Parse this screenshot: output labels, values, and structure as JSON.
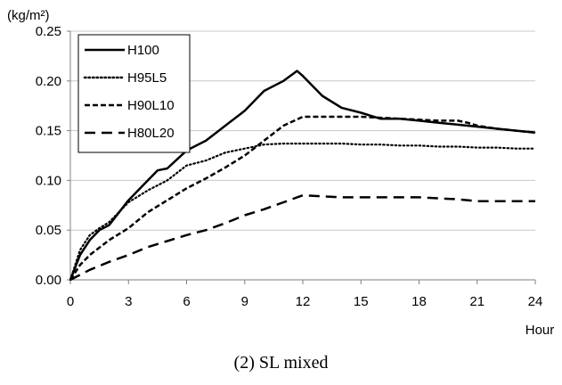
{
  "caption": "(2) SL mixed",
  "chart_data": {
    "type": "line",
    "title": "",
    "ylabel": "(kg/m²)",
    "xlabel": "Hour",
    "xlim": [
      0,
      24
    ],
    "ylim": [
      0,
      0.25
    ],
    "xticks": [
      0,
      3,
      6,
      9,
      12,
      15,
      18,
      21,
      24
    ],
    "yticks": [
      0.0,
      0.05,
      0.1,
      0.15,
      0.2,
      0.25
    ],
    "ytick_labels": [
      "0.00",
      "0.05",
      "0.10",
      "0.15",
      "0.20",
      "0.25"
    ],
    "grid": "horizontal",
    "legend_position": "top-left",
    "series": [
      {
        "name": "H100",
        "style": "solid",
        "x": [
          0,
          0.5,
          1,
          1.5,
          2,
          3,
          4,
          4.5,
          5,
          6,
          7,
          8,
          9,
          10,
          11,
          11.7,
          12,
          12.5,
          13,
          14,
          15,
          16,
          17,
          18,
          19,
          20,
          21,
          22,
          23,
          24
        ],
        "y": [
          0,
          0.025,
          0.04,
          0.05,
          0.055,
          0.08,
          0.1,
          0.11,
          0.112,
          0.13,
          0.14,
          0.155,
          0.17,
          0.19,
          0.2,
          0.21,
          0.205,
          0.195,
          0.185,
          0.173,
          0.168,
          0.162,
          0.162,
          0.16,
          0.158,
          0.156,
          0.154,
          0.152,
          0.15,
          0.148
        ]
      },
      {
        "name": "H95L5",
        "style": "dotted",
        "x": [
          0,
          0.5,
          1,
          1.5,
          2,
          3,
          4,
          5,
          6,
          7,
          8,
          9,
          10,
          11,
          12,
          13,
          14,
          15,
          16,
          17,
          18,
          19,
          20,
          21,
          22,
          23,
          24
        ],
        "y": [
          0,
          0.03,
          0.045,
          0.052,
          0.058,
          0.078,
          0.09,
          0.1,
          0.115,
          0.12,
          0.128,
          0.132,
          0.136,
          0.137,
          0.137,
          0.137,
          0.137,
          0.136,
          0.136,
          0.135,
          0.135,
          0.134,
          0.134,
          0.133,
          0.133,
          0.132,
          0.132
        ]
      },
      {
        "name": "H90L10",
        "style": "dashed",
        "x": [
          0,
          0.5,
          1,
          2,
          3,
          4,
          5,
          6,
          7,
          8,
          9,
          10,
          11,
          12,
          13,
          14,
          15,
          16,
          17,
          18,
          19,
          20,
          20.5,
          21,
          22,
          23,
          24
        ],
        "y": [
          0,
          0.015,
          0.025,
          0.04,
          0.052,
          0.068,
          0.08,
          0.092,
          0.102,
          0.113,
          0.125,
          0.14,
          0.155,
          0.164,
          0.164,
          0.164,
          0.164,
          0.163,
          0.162,
          0.161,
          0.16,
          0.16,
          0.158,
          0.155,
          0.152,
          0.15,
          0.148
        ]
      },
      {
        "name": "H80L20",
        "style": "long-dash",
        "x": [
          0,
          1,
          2,
          3,
          4,
          5,
          6,
          7,
          8,
          9,
          10,
          11,
          12,
          13,
          14,
          15,
          16,
          17,
          18,
          19,
          20,
          21,
          22,
          23,
          24
        ],
        "y": [
          0,
          0.01,
          0.018,
          0.025,
          0.033,
          0.039,
          0.045,
          0.05,
          0.057,
          0.065,
          0.071,
          0.078,
          0.085,
          0.084,
          0.083,
          0.083,
          0.083,
          0.083,
          0.083,
          0.082,
          0.081,
          0.079,
          0.079,
          0.079,
          0.079
        ]
      }
    ]
  }
}
